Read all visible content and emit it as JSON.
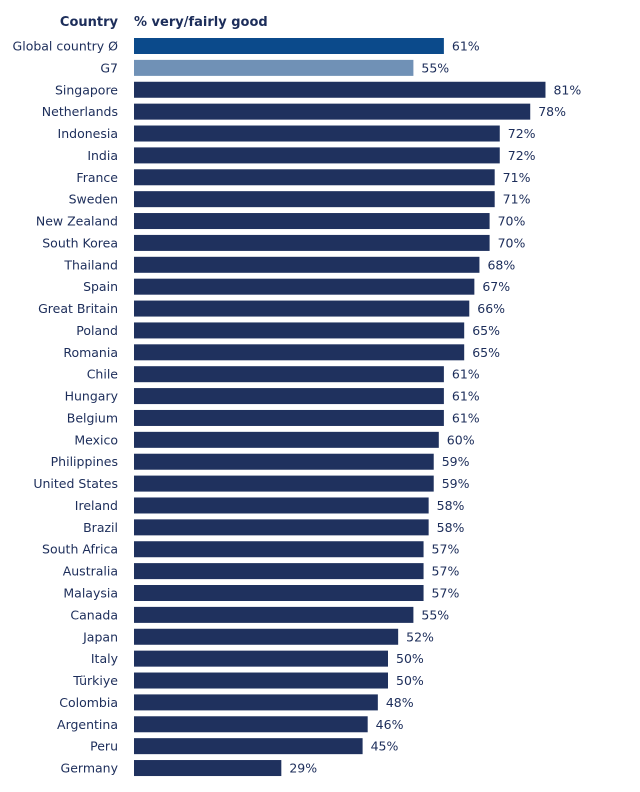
{
  "chart_data": {
    "type": "bar",
    "orientation": "horizontal",
    "column_headers": {
      "category": "Country",
      "value": "% very/fairly good"
    },
    "xlim": [
      0,
      100
    ],
    "grid": false,
    "value_suffix": "%",
    "categories": [
      "Global country Ø",
      "G7",
      "Singapore",
      "Netherlands",
      "Indonesia",
      "India",
      "France",
      "Sweden",
      "New Zealand",
      "South Korea",
      "Thailand",
      "Spain",
      "Great Britain",
      "Poland",
      "Romania",
      "Chile",
      "Hungary",
      "Belgium",
      "Mexico",
      "Philippines",
      "United States",
      "Ireland",
      "Brazil",
      "South Africa",
      "Australia",
      "Malaysia",
      "Canada",
      "Japan",
      "Italy",
      "Türkiye",
      "Colombia",
      "Argentina",
      "Peru",
      "Germany"
    ],
    "values": [
      61,
      55,
      81,
      78,
      72,
      72,
      71,
      71,
      70,
      70,
      68,
      67,
      66,
      65,
      65,
      61,
      61,
      61,
      60,
      59,
      59,
      58,
      58,
      57,
      57,
      57,
      55,
      52,
      50,
      50,
      48,
      46,
      45,
      29
    ],
    "colors": {
      "global": "#0b4a8b",
      "g7": "#7091b6",
      "default": "#1f315e"
    }
  }
}
